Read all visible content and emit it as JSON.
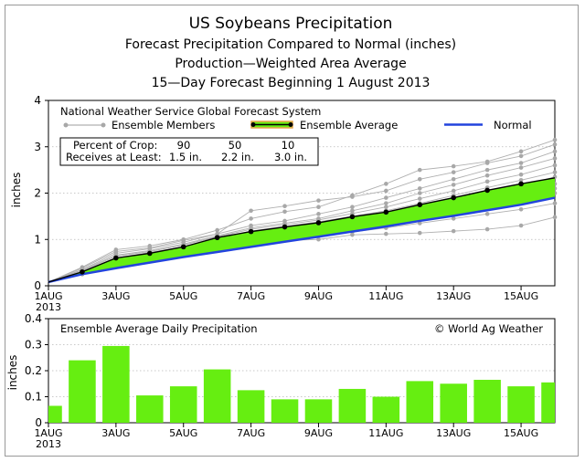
{
  "titles": {
    "line1": "US Soybeans Precipitation",
    "line2": "Forecast Precipitation Compared to Normal (inches)",
    "line3": "Production—Weighted Area Average",
    "line4": "15—Day Forecast Beginning 1 August 2013"
  },
  "top_panel": {
    "system_label": "National Weather Service Global Forecast System",
    "legend": {
      "members": "Ensemble Members",
      "average": "Ensemble Average",
      "normal": "Normal"
    },
    "crop_table": {
      "row1_label": "Percent of Crop:",
      "row2_label": "Receives at Least:",
      "percents": [
        "90",
        "50",
        "10"
      ],
      "amounts": [
        "1.5 in.",
        "2.2 in.",
        "3.0 in."
      ]
    }
  },
  "bottom_panel": {
    "label": "Ensemble Average Daily Precipitation",
    "credit": "© World Ag Weather"
  },
  "colors": {
    "fill": "#66ee11",
    "normal": "#2244dd",
    "average": "#000000",
    "members": "#b0b0b0",
    "avg_outline": "#e8a24a"
  },
  "chart_data": [
    {
      "type": "line",
      "ylabel": "inches",
      "ylim": [
        0,
        4
      ],
      "yticks": [
        0,
        1,
        2,
        3,
        4
      ],
      "xlim": [
        1,
        16
      ],
      "xticks": [
        {
          "x": 1,
          "label": "1AUG",
          "sub": "2013"
        },
        {
          "x": 3,
          "label": "3AUG"
        },
        {
          "x": 5,
          "label": "5AUG"
        },
        {
          "x": 7,
          "label": "7AUG"
        },
        {
          "x": 9,
          "label": "9AUG"
        },
        {
          "x": 11,
          "label": "11AUG"
        },
        {
          "x": 13,
          "label": "13AUG"
        },
        {
          "x": 15,
          "label": "15AUG"
        }
      ],
      "x": [
        1,
        2,
        3,
        4,
        5,
        6,
        7,
        8,
        9,
        10,
        11,
        12,
        13,
        14,
        15,
        16
      ],
      "series": [
        {
          "name": "Ensemble Average",
          "values": [
            0.08,
            0.3,
            0.6,
            0.7,
            0.84,
            1.04,
            1.17,
            1.27,
            1.36,
            1.49,
            1.59,
            1.75,
            1.9,
            2.06,
            2.2,
            2.33
          ]
        },
        {
          "name": "Normal",
          "values": [
            0.08,
            0.25,
            0.38,
            0.5,
            0.62,
            0.73,
            0.84,
            0.95,
            1.06,
            1.17,
            1.28,
            1.4,
            1.51,
            1.63,
            1.75,
            1.9
          ]
        }
      ],
      "members": [
        [
          0.08,
          0.4,
          0.78,
          0.86,
          1.0,
          1.2,
          1.45,
          1.6,
          1.7,
          1.95,
          2.2,
          2.5,
          2.58,
          2.68,
          2.9,
          3.15
        ],
        [
          0.08,
          0.38,
          0.74,
          0.82,
          0.98,
          1.12,
          1.62,
          1.72,
          1.84,
          1.92,
          2.05,
          2.3,
          2.45,
          2.65,
          2.8,
          3.05
        ],
        [
          0.08,
          0.35,
          0.7,
          0.8,
          0.94,
          1.12,
          1.3,
          1.4,
          1.55,
          1.7,
          1.9,
          2.1,
          2.3,
          2.5,
          2.65,
          2.9
        ],
        [
          0.08,
          0.34,
          0.66,
          0.76,
          0.9,
          1.08,
          1.25,
          1.35,
          1.45,
          1.62,
          1.78,
          2.0,
          2.18,
          2.38,
          2.55,
          2.75
        ],
        [
          0.08,
          0.32,
          0.64,
          0.74,
          0.88,
          1.06,
          1.22,
          1.32,
          1.42,
          1.56,
          1.7,
          1.88,
          2.05,
          2.25,
          2.4,
          2.6
        ],
        [
          0.08,
          0.3,
          0.6,
          0.72,
          0.84,
          1.02,
          1.18,
          1.28,
          1.38,
          1.5,
          1.62,
          1.78,
          1.95,
          2.12,
          2.28,
          2.45
        ],
        [
          0.08,
          0.29,
          0.58,
          0.68,
          0.8,
          0.98,
          1.12,
          1.22,
          1.32,
          1.42,
          1.55,
          1.7,
          1.85,
          2.0,
          2.15,
          2.35
        ],
        [
          0.08,
          0.28,
          0.56,
          0.66,
          0.78,
          0.95,
          1.08,
          1.18,
          1.28,
          1.38,
          1.5,
          1.62,
          1.78,
          1.92,
          2.05,
          2.2
        ],
        [
          0.08,
          0.27,
          0.54,
          0.64,
          0.76,
          0.92,
          1.04,
          1.12,
          1.2,
          1.3,
          1.42,
          1.55,
          1.68,
          1.82,
          1.95,
          2.1
        ],
        [
          0.08,
          0.26,
          0.52,
          0.62,
          0.74,
          0.9,
          1.0,
          1.06,
          1.14,
          1.24,
          1.35,
          1.48,
          1.6,
          1.72,
          1.85,
          2.0
        ],
        [
          0.08,
          0.25,
          0.5,
          0.6,
          0.72,
          0.86,
          0.96,
          1.02,
          1.08,
          1.16,
          1.25,
          1.35,
          1.45,
          1.55,
          1.65,
          1.78
        ],
        [
          0.08,
          0.25,
          0.48,
          0.58,
          0.7,
          0.84,
          0.94,
          0.98,
          1.0,
          1.1,
          1.12,
          1.14,
          1.18,
          1.22,
          1.3,
          1.48
        ]
      ]
    },
    {
      "type": "bar",
      "ylabel": "inches",
      "ylim": [
        0,
        0.4
      ],
      "yticks": [
        0,
        0.1,
        0.2,
        0.3,
        0.4
      ],
      "ytick_labels": [
        "0",
        "0.1",
        "0.2",
        "0.3",
        "0.4"
      ],
      "x": [
        1,
        2,
        3,
        4,
        5,
        6,
        7,
        8,
        9,
        10,
        11,
        12,
        13,
        14,
        15,
        16
      ],
      "values": [
        0.065,
        0.24,
        0.295,
        0.105,
        0.14,
        0.205,
        0.125,
        0.09,
        0.09,
        0.13,
        0.1,
        0.16,
        0.15,
        0.165,
        0.14,
        0.155
      ]
    }
  ]
}
